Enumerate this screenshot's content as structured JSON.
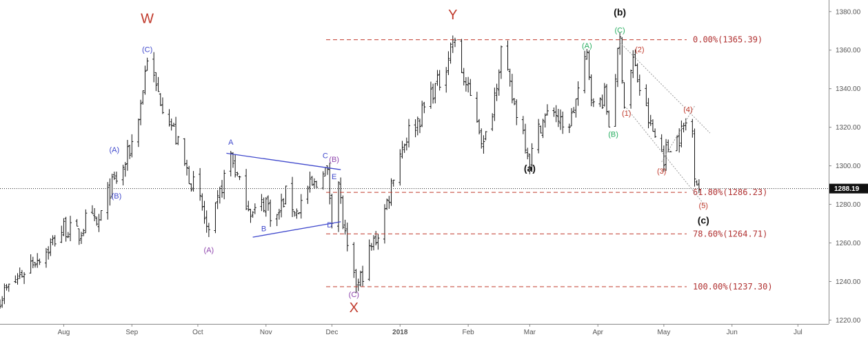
{
  "chart_data": {
    "type": "candlestick",
    "title": "",
    "ylim": [
      1218,
      1386
    ],
    "y_ticks": [
      1220,
      1240,
      1260,
      1280,
      1300,
      1320,
      1340,
      1360,
      1380
    ],
    "y_tick_labels": [
      "1220.00",
      "1240.00",
      "1260.00",
      "1280.00",
      "1300.00",
      "1320.00",
      "1340.00",
      "1360.00",
      "1380.00"
    ],
    "x_labels": [
      "Aug",
      "Sep",
      "Oct",
      "Nov",
      "Dec",
      "2018",
      "Feb",
      "Mar",
      "Apr",
      "May",
      "Jun",
      "Jul"
    ],
    "x_label_dates": [
      "2017-08-01",
      "2017-09-01",
      "2017-10-01",
      "2017-11-01",
      "2017-12-01",
      "2018-01-01",
      "2018-02-01",
      "2018-03-01",
      "2018-04-01",
      "2018-05-01",
      "2018-06-01",
      "2018-07-01"
    ],
    "x_range": [
      "2017-07-03",
      "2018-07-15"
    ],
    "current_price": 1288.19,
    "current_price_label": "1288.19",
    "path": [
      [
        "2017-07-03",
        1232
      ],
      [
        "2017-07-10",
        1240
      ],
      [
        "2017-07-17",
        1250
      ],
      [
        "2017-07-24",
        1256
      ],
      [
        "2017-08-01",
        1268
      ],
      [
        "2017-08-08",
        1264
      ],
      [
        "2017-08-12",
        1274
      ],
      [
        "2017-08-16",
        1268
      ],
      [
        "2017-08-22",
        1288
      ],
      [
        "2017-08-25",
        1293
      ],
      [
        "2017-08-28",
        1298
      ],
      [
        "2017-09-01",
        1312
      ],
      [
        "2017-09-05",
        1332
      ],
      [
        "2017-09-08",
        1357
      ],
      [
        "2017-09-12",
        1340
      ],
      [
        "2017-09-18",
        1325
      ],
      [
        "2017-09-25",
        1300
      ],
      [
        "2017-09-29",
        1290
      ],
      [
        "2017-10-03",
        1278
      ],
      [
        "2017-10-06",
        1262
      ],
      [
        "2017-10-12",
        1290
      ],
      [
        "2017-10-16",
        1306
      ],
      [
        "2017-10-20",
        1290
      ],
      [
        "2017-10-26",
        1275
      ],
      [
        "2017-11-01",
        1282
      ],
      [
        "2017-11-05",
        1270
      ],
      [
        "2017-11-10",
        1285
      ],
      [
        "2017-11-15",
        1276
      ],
      [
        "2017-11-20",
        1288
      ],
      [
        "2017-11-24",
        1290
      ],
      [
        "2017-11-27",
        1300
      ],
      [
        "2017-11-29",
        1295
      ],
      [
        "2017-12-01",
        1275
      ],
      [
        "2017-12-04",
        1292
      ],
      [
        "2017-12-06",
        1270
      ],
      [
        "2017-12-08",
        1255
      ],
      [
        "2017-12-11",
        1240
      ],
      [
        "2017-12-13",
        1238
      ],
      [
        "2017-12-18",
        1255
      ],
      [
        "2017-12-22",
        1265
      ],
      [
        "2017-12-27",
        1285
      ],
      [
        "2017-12-30",
        1302
      ],
      [
        "2018-01-05",
        1318
      ],
      [
        "2018-01-10",
        1325
      ],
      [
        "2018-01-15",
        1338
      ],
      [
        "2018-01-20",
        1345
      ],
      [
        "2018-01-25",
        1366
      ],
      [
        "2018-01-30",
        1345
      ],
      [
        "2018-02-05",
        1325
      ],
      [
        "2018-02-08",
        1310
      ],
      [
        "2018-02-12",
        1330
      ],
      [
        "2018-02-16",
        1360
      ],
      [
        "2018-02-21",
        1335
      ],
      [
        "2018-02-26",
        1318
      ],
      [
        "2018-03-01",
        1303
      ],
      [
        "2018-03-06",
        1322
      ],
      [
        "2018-03-12",
        1330
      ],
      [
        "2018-03-16",
        1318
      ],
      [
        "2018-03-20",
        1325
      ],
      [
        "2018-03-27",
        1357
      ],
      [
        "2018-03-30",
        1330
      ],
      [
        "2018-04-04",
        1336
      ],
      [
        "2018-04-06",
        1322
      ],
      [
        "2018-04-11",
        1365
      ],
      [
        "2018-04-13",
        1332
      ],
      [
        "2018-04-17",
        1355
      ],
      [
        "2018-04-20",
        1340
      ],
      [
        "2018-04-25",
        1320
      ],
      [
        "2018-05-01",
        1305
      ],
      [
        "2018-05-04",
        1312
      ],
      [
        "2018-05-08",
        1315
      ],
      [
        "2018-05-11",
        1322
      ],
      [
        "2018-05-14",
        1318
      ],
      [
        "2018-05-15",
        1298
      ],
      [
        "2018-05-17",
        1288
      ]
    ],
    "fib_levels": [
      {
        "value": 1365.39,
        "label": "0.00%(1365.39)"
      },
      {
        "value": 1286.23,
        "label": "61.80%(1286.23)"
      },
      {
        "value": 1264.71,
        "label": "78.60%(1264.71)"
      },
      {
        "value": 1237.3,
        "label": "100.00%(1237.30)"
      }
    ],
    "wave_labels": [
      {
        "text": "W",
        "date": "2017-09-08",
        "price": 1374,
        "color": "#c0392b",
        "size": 20
      },
      {
        "text": "(C)",
        "date": "2017-09-08",
        "price": 1359,
        "color": "#3f48cc",
        "size": 11
      },
      {
        "text": "(A)",
        "date": "2017-08-24",
        "price": 1307,
        "color": "#3f48cc",
        "size": 11
      },
      {
        "text": "(B)",
        "date": "2017-08-25",
        "price": 1283,
        "color": "#3f48cc",
        "size": 11
      },
      {
        "text": "(A)",
        "date": "2017-10-06",
        "price": 1255,
        "color": "#8e44ad",
        "size": 11
      },
      {
        "text": "A",
        "date": "2017-10-16",
        "price": 1311,
        "color": "#3f48cc",
        "size": 11
      },
      {
        "text": "B",
        "date": "2017-10-31",
        "price": 1266,
        "color": "#3f48cc",
        "size": 11
      },
      {
        "text": "C",
        "date": "2017-11-28",
        "price": 1304,
        "color": "#3f48cc",
        "size": 11
      },
      {
        "text": "(B)",
        "date": "2017-12-02",
        "price": 1302,
        "color": "#8e44ad",
        "size": 11
      },
      {
        "text": "E",
        "date": "2017-12-02",
        "price": 1293,
        "color": "#3f48cc",
        "size": 11
      },
      {
        "text": "D",
        "date": "2017-11-30",
        "price": 1268,
        "color": "#3f48cc",
        "size": 11
      },
      {
        "text": "(C)",
        "date": "2017-12-11",
        "price": 1232,
        "color": "#8e44ad",
        "size": 11
      },
      {
        "text": "X",
        "date": "2017-12-11",
        "price": 1224,
        "color": "#c0392b",
        "size": 20
      },
      {
        "text": "Y",
        "date": "2018-01-25",
        "price": 1376,
        "color": "#c0392b",
        "size": 20
      },
      {
        "text": "(b)",
        "date": "2018-04-11",
        "price": 1378,
        "color": "#111111",
        "size": 14,
        "bold": true
      },
      {
        "text": "(C)",
        "date": "2018-04-11",
        "price": 1369,
        "color": "#27ae60",
        "size": 11
      },
      {
        "text": "(A)",
        "date": "2018-03-27",
        "price": 1361,
        "color": "#27ae60",
        "size": 11
      },
      {
        "text": "(B)",
        "date": "2018-04-08",
        "price": 1315,
        "color": "#27ae60",
        "size": 11
      },
      {
        "text": "(1)",
        "date": "2018-04-14",
        "price": 1326,
        "color": "#c0392b",
        "size": 11
      },
      {
        "text": "(2)",
        "date": "2018-04-20",
        "price": 1359,
        "color": "#c0392b",
        "size": 11
      },
      {
        "text": "(3)",
        "date": "2018-04-30",
        "price": 1296,
        "color": "#c0392b",
        "size": 11
      },
      {
        "text": "(4)",
        "date": "2018-05-12",
        "price": 1328,
        "color": "#c0392b",
        "size": 11
      },
      {
        "text": "(5)",
        "date": "2018-05-19",
        "price": 1278,
        "color": "#c0392b",
        "size": 11
      },
      {
        "text": "(c)",
        "date": "2018-05-19",
        "price": 1270,
        "color": "#111111",
        "size": 14,
        "bold": true
      },
      {
        "text": "(a)",
        "date": "2018-03-01",
        "price": 1297,
        "color": "#111111",
        "size": 14,
        "bold": true
      }
    ],
    "trendlines": [
      {
        "from": [
          "2017-10-14",
          1306.5
        ],
        "to": [
          "2017-12-05",
          1298
        ],
        "color": "#3f48cc",
        "style": "solid"
      },
      {
        "from": [
          "2017-10-26",
          1263
        ],
        "to": [
          "2017-12-05",
          1271
        ],
        "color": "#3f48cc",
        "style": "solid"
      },
      {
        "from": [
          "2018-04-11",
          1364
        ],
        "to": [
          "2018-05-22",
          1317
        ],
        "color": "#999999",
        "style": "dotted"
      },
      {
        "from": [
          "2018-04-14",
          1330
        ],
        "to": [
          "2018-05-20",
          1279
        ],
        "color": "#999999",
        "style": "dotted"
      },
      {
        "from": [
          "2018-04-30",
          1302
        ],
        "to": [
          "2018-05-15",
          1331
        ],
        "color": "#999999",
        "style": "dotted"
      }
    ],
    "grid": false,
    "colors": {
      "fib": "#c0392b",
      "bars": "#111111",
      "badge": "#111111"
    }
  }
}
